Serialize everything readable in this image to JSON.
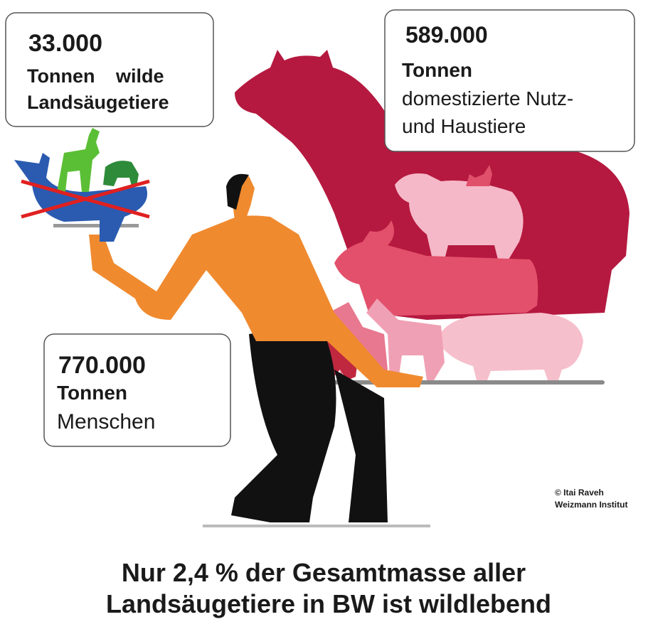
{
  "boxes": [
    {
      "number": "33.000",
      "lines": [
        "Tonnen wilde",
        "Landsäugetiere"
      ]
    },
    {
      "number": "589.000",
      "lines": [
        "Tonnen",
        "domestizierte Nutz-",
        "und Haustiere"
      ]
    },
    {
      "number": "770.000",
      "lines": [
        "Tonnen",
        "Menschen"
      ]
    }
  ],
  "credit": {
    "lines": [
      "© Itai Raveh",
      "Weizmann Institut"
    ]
  },
  "caption": {
    "lines": [
      "Nur 2,4 % der Gesamtmasse aller",
      "Landsäugetiere in BW ist wildlebend"
    ]
  }
}
